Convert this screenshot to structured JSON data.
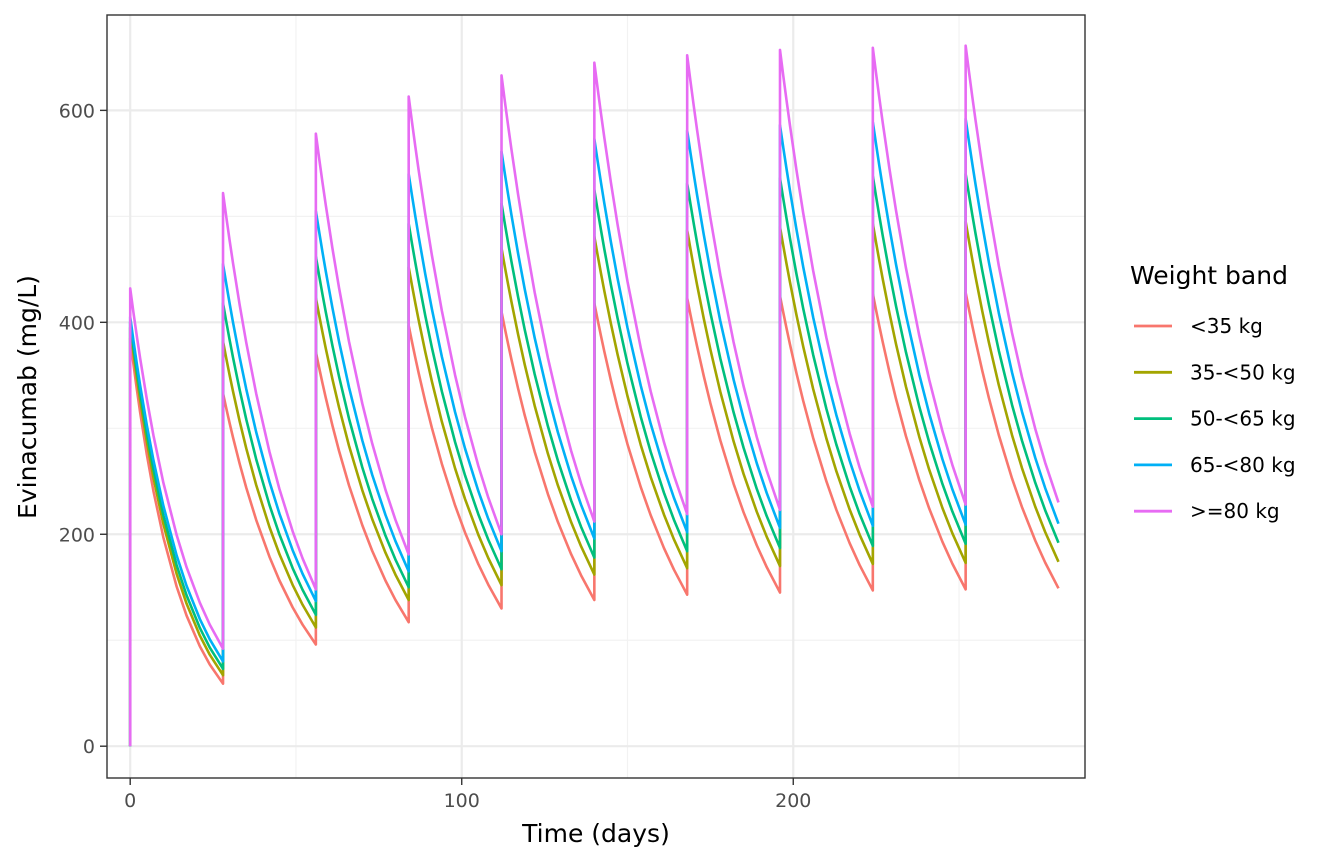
{
  "chart_data": {
    "type": "line",
    "title": "",
    "xlabel": "Time (days)",
    "ylabel": "Evinacumab (mg/L)",
    "xlim": [
      -7,
      288
    ],
    "ylim": [
      -30,
      690
    ],
    "x_ticks": [
      0,
      100,
      200
    ],
    "y_ticks": [
      0,
      200,
      400,
      600
    ],
    "grid": true,
    "legend": {
      "title": "Weight band",
      "position": "right"
    },
    "dosing": {
      "interval_days": 28,
      "dose_days": [
        0,
        28,
        56,
        84,
        112,
        140,
        168,
        196,
        224,
        252
      ],
      "end_day": 281
    },
    "series": [
      {
        "name": "<35 kg",
        "color": "#F8766D",
        "peaks": [
          385,
          333,
          372,
          397,
          410,
          418,
          423,
          425,
          427,
          428
        ],
        "troughs": [
          59,
          96,
          117,
          130,
          138,
          143,
          145,
          147,
          148,
          149
        ]
      },
      {
        "name": "35-<50 kg",
        "color": "#A3A500",
        "peaks": [
          395,
          382,
          423,
          452,
          470,
          481,
          487,
          490,
          493,
          495
        ],
        "troughs": [
          67,
          112,
          138,
          152,
          162,
          168,
          170,
          172,
          173,
          174
        ]
      },
      {
        "name": "50-<65 kg",
        "color": "#00BF7D",
        "peaks": [
          400,
          418,
          462,
          493,
          512,
          525,
          531,
          536,
          538,
          540
        ],
        "troughs": [
          73,
          124,
          150,
          167,
          178,
          184,
          187,
          189,
          191,
          192
        ]
      },
      {
        "name": "65-<80 kg",
        "color": "#00B0F6",
        "peaks": [
          405,
          455,
          505,
          540,
          561,
          573,
          581,
          586,
          589,
          592
        ],
        "troughs": [
          80,
          137,
          165,
          184,
          196,
          202,
          206,
          208,
          209,
          210
        ]
      },
      {
        "name": ">=80 kg",
        "color": "#E76BF3",
        "peaks": [
          432,
          522,
          578,
          613,
          633,
          645,
          652,
          657,
          659,
          661
        ],
        "troughs": [
          92,
          148,
          181,
          200,
          212,
          219,
          223,
          226,
          228,
          230
        ]
      }
    ]
  },
  "style": {
    "panel_border": "#333333",
    "grid_major": "#ebebeb",
    "grid_minor": "#f2f2f2",
    "tick_color": "#333333"
  }
}
